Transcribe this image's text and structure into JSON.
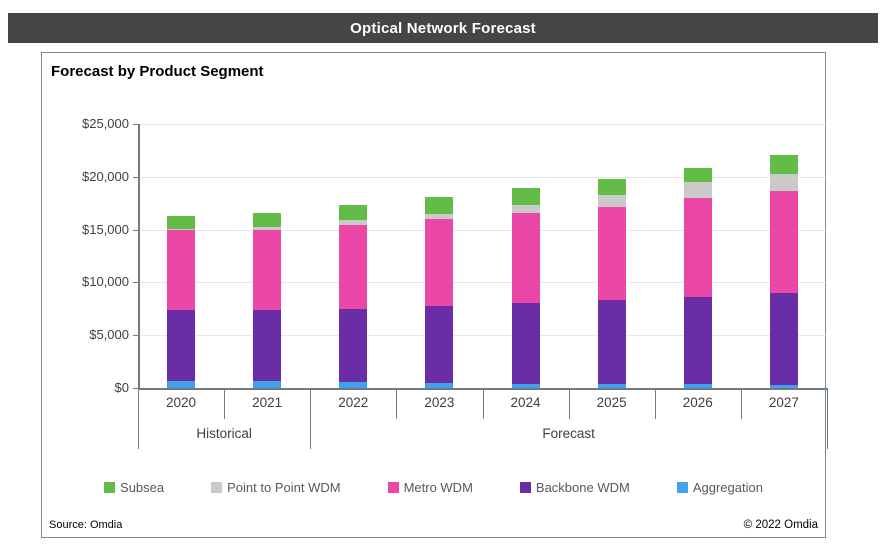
{
  "header": {
    "title": "Optical Network Forecast"
  },
  "footer": {
    "source": "Source: Omdia",
    "copyright": "© 2022 Omdia"
  },
  "colors": {
    "title_bar_bg": "#454545",
    "title_bar_text": "#ffffff",
    "box_border": "#7E8A94",
    "axis": "#6F7B85",
    "gridline": "#E8E8E8",
    "label_text": "#3F3F3F",
    "legend_text": "#595959"
  },
  "chart_data": {
    "type": "bar",
    "stacked": true,
    "title": "Forecast by Product Segment",
    "xlabel": "",
    "ylabel": "",
    "grid": true,
    "legend_position": "bottom",
    "ylim": [
      0,
      25000
    ],
    "categories": [
      "2020",
      "2021",
      "2022",
      "2023",
      "2024",
      "2025",
      "2026",
      "2027"
    ],
    "group_labels": [
      {
        "label": "Historical",
        "from": 0,
        "to": 1
      },
      {
        "label": "Forecast",
        "from": 2,
        "to": 7
      }
    ],
    "y_ticks": [
      {
        "value": 0,
        "label": "$0"
      },
      {
        "value": 5000,
        "label": "$5,000"
      },
      {
        "value": 10000,
        "label": "$10,000"
      },
      {
        "value": 15000,
        "label": "$15,000"
      },
      {
        "value": 20000,
        "label": "$20,000"
      },
      {
        "value": 25000,
        "label": "$25,000"
      }
    ],
    "series": [
      {
        "name": "Aggregation",
        "color": "#41A1EE",
        "values": [
          700,
          700,
          550,
          450,
          400,
          400,
          400,
          250
        ]
      },
      {
        "name": "Backbone WDM",
        "color": "#6B2DA5",
        "values": [
          6650,
          6700,
          6950,
          7300,
          7650,
          7950,
          8250,
          8750
        ]
      },
      {
        "name": "Metro WDM",
        "color": "#EB47A6",
        "values": [
          7650,
          7600,
          7950,
          8250,
          8500,
          8800,
          9350,
          9650
        ]
      },
      {
        "name": "Point to Point WDM",
        "color": "#CACACA",
        "values": [
          100,
          200,
          500,
          500,
          750,
          1150,
          1500,
          1600
        ]
      },
      {
        "name": "Subsea",
        "color": "#62BC46",
        "values": [
          1200,
          1400,
          1400,
          1550,
          1600,
          1500,
          1350,
          1800
        ]
      }
    ],
    "legend": [
      "Subsea",
      "Point to Point WDM",
      "Metro WDM",
      "Backbone WDM",
      "Aggregation"
    ],
    "totals": [
      16300,
      16600,
      17350,
      18050,
      18900,
      19800,
      20850,
      22050
    ]
  }
}
